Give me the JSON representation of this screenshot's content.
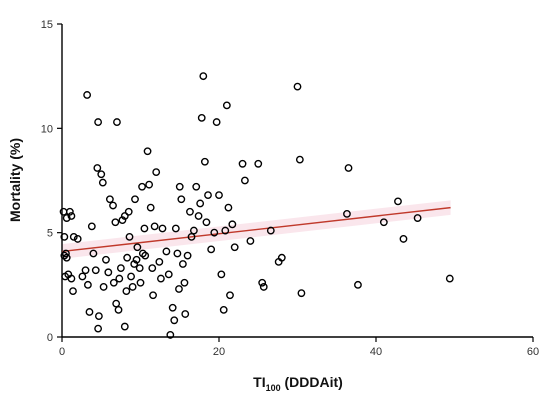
{
  "chart_data": {
    "type": "scatter",
    "title": "",
    "xlabel": "TI",
    "xlabel_subscript": "100",
    "xlabel_suffix": " (DDDAit)",
    "ylabel": "Mortality (%)",
    "xlim": [
      0,
      60
    ],
    "ylim": [
      0,
      15
    ],
    "xticks": [
      "0",
      "20",
      "40",
      "60"
    ],
    "yticks": [
      "0",
      "5",
      "10",
      "15"
    ],
    "grid": false,
    "legend": "none",
    "colors": {
      "points": "#000000",
      "trend_line": "#c0392b",
      "confidence_band": "#f6d2dc"
    },
    "trend_line": {
      "x": [
        0,
        49.5
      ],
      "y": [
        4.1,
        6.2
      ]
    },
    "points": [
      {
        "x": 0.2,
        "y": 6.0
      },
      {
        "x": 0.6,
        "y": 5.7
      },
      {
        "x": 1.0,
        "y": 6.0
      },
      {
        "x": 1.2,
        "y": 5.8
      },
      {
        "x": 0.3,
        "y": 4.8
      },
      {
        "x": 0.5,
        "y": 4.0
      },
      {
        "x": 0.3,
        "y": 3.9
      },
      {
        "x": 0.6,
        "y": 3.8
      },
      {
        "x": 0.4,
        "y": 2.9
      },
      {
        "x": 0.8,
        "y": 3.0
      },
      {
        "x": 1.2,
        "y": 2.8
      },
      {
        "x": 1.5,
        "y": 4.8
      },
      {
        "x": 2.0,
        "y": 4.7
      },
      {
        "x": 2.6,
        "y": 2.9
      },
      {
        "x": 3.0,
        "y": 3.2
      },
      {
        "x": 3.3,
        "y": 2.5
      },
      {
        "x": 1.4,
        "y": 2.2
      },
      {
        "x": 3.2,
        "y": 11.6
      },
      {
        "x": 3.8,
        "y": 5.3
      },
      {
        "x": 4.0,
        "y": 4.0
      },
      {
        "x": 4.3,
        "y": 3.2
      },
      {
        "x": 4.5,
        "y": 8.1
      },
      {
        "x": 4.6,
        "y": 10.3
      },
      {
        "x": 5.0,
        "y": 7.8
      },
      {
        "x": 5.2,
        "y": 7.4
      },
      {
        "x": 4.7,
        "y": 1.0
      },
      {
        "x": 4.6,
        "y": 0.4
      },
      {
        "x": 3.5,
        "y": 1.2
      },
      {
        "x": 5.3,
        "y": 2.4
      },
      {
        "x": 5.6,
        "y": 3.7
      },
      {
        "x": 5.9,
        "y": 3.1
      },
      {
        "x": 6.1,
        "y": 6.6
      },
      {
        "x": 6.5,
        "y": 6.3
      },
      {
        "x": 6.8,
        "y": 5.5
      },
      {
        "x": 7.0,
        "y": 10.3
      },
      {
        "x": 6.6,
        "y": 2.6
      },
      {
        "x": 6.9,
        "y": 1.6
      },
      {
        "x": 7.2,
        "y": 1.3
      },
      {
        "x": 7.3,
        "y": 2.8
      },
      {
        "x": 7.5,
        "y": 3.3
      },
      {
        "x": 7.7,
        "y": 5.6
      },
      {
        "x": 8.0,
        "y": 5.8
      },
      {
        "x": 8.0,
        "y": 0.5
      },
      {
        "x": 8.2,
        "y": 2.2
      },
      {
        "x": 8.3,
        "y": 3.8
      },
      {
        "x": 8.5,
        "y": 6.0
      },
      {
        "x": 8.6,
        "y": 4.8
      },
      {
        "x": 8.8,
        "y": 2.9
      },
      {
        "x": 9.0,
        "y": 2.4
      },
      {
        "x": 9.2,
        "y": 3.5
      },
      {
        "x": 9.3,
        "y": 6.6
      },
      {
        "x": 9.5,
        "y": 3.7
      },
      {
        "x": 9.6,
        "y": 4.3
      },
      {
        "x": 9.9,
        "y": 3.3
      },
      {
        "x": 10.0,
        "y": 2.6
      },
      {
        "x": 10.2,
        "y": 7.2
      },
      {
        "x": 10.3,
        "y": 4.0
      },
      {
        "x": 10.5,
        "y": 5.2
      },
      {
        "x": 10.6,
        "y": 3.9
      },
      {
        "x": 10.9,
        "y": 8.9
      },
      {
        "x": 11.1,
        "y": 7.3
      },
      {
        "x": 11.3,
        "y": 6.2
      },
      {
        "x": 11.5,
        "y": 3.3
      },
      {
        "x": 11.6,
        "y": 2.0
      },
      {
        "x": 11.8,
        "y": 5.3
      },
      {
        "x": 12.0,
        "y": 7.9
      },
      {
        "x": 12.4,
        "y": 3.6
      },
      {
        "x": 12.6,
        "y": 2.8
      },
      {
        "x": 12.8,
        "y": 5.2
      },
      {
        "x": 13.3,
        "y": 4.1
      },
      {
        "x": 13.6,
        "y": 3.0
      },
      {
        "x": 13.8,
        "y": 0.1
      },
      {
        "x": 14.1,
        "y": 1.4
      },
      {
        "x": 14.3,
        "y": 0.8
      },
      {
        "x": 14.5,
        "y": 5.2
      },
      {
        "x": 14.7,
        "y": 4.0
      },
      {
        "x": 14.9,
        "y": 2.3
      },
      {
        "x": 15.0,
        "y": 7.2
      },
      {
        "x": 15.2,
        "y": 6.6
      },
      {
        "x": 15.4,
        "y": 3.5
      },
      {
        "x": 15.6,
        "y": 2.6
      },
      {
        "x": 15.7,
        "y": 1.1
      },
      {
        "x": 16.0,
        "y": 3.9
      },
      {
        "x": 16.3,
        "y": 6.0
      },
      {
        "x": 16.5,
        "y": 4.8
      },
      {
        "x": 16.8,
        "y": 5.1
      },
      {
        "x": 17.1,
        "y": 7.2
      },
      {
        "x": 17.4,
        "y": 5.8
      },
      {
        "x": 17.6,
        "y": 6.4
      },
      {
        "x": 17.8,
        "y": 10.5
      },
      {
        "x": 18.0,
        "y": 12.5
      },
      {
        "x": 18.2,
        "y": 8.4
      },
      {
        "x": 18.4,
        "y": 5.5
      },
      {
        "x": 18.6,
        "y": 6.8
      },
      {
        "x": 19.0,
        "y": 4.2
      },
      {
        "x": 19.4,
        "y": 5.0
      },
      {
        "x": 19.7,
        "y": 10.3
      },
      {
        "x": 20.0,
        "y": 6.8
      },
      {
        "x": 20.3,
        "y": 3.0
      },
      {
        "x": 20.6,
        "y": 1.3
      },
      {
        "x": 20.8,
        "y": 5.1
      },
      {
        "x": 21.0,
        "y": 11.1
      },
      {
        "x": 21.2,
        "y": 6.2
      },
      {
        "x": 21.4,
        "y": 2.0
      },
      {
        "x": 21.7,
        "y": 5.4
      },
      {
        "x": 22.0,
        "y": 4.3
      },
      {
        "x": 23.0,
        "y": 8.3
      },
      {
        "x": 23.3,
        "y": 7.5
      },
      {
        "x": 24.0,
        "y": 4.6
      },
      {
        "x": 25.0,
        "y": 8.3
      },
      {
        "x": 25.5,
        "y": 2.6
      },
      {
        "x": 25.7,
        "y": 2.4
      },
      {
        "x": 26.6,
        "y": 5.1
      },
      {
        "x": 27.6,
        "y": 3.6
      },
      {
        "x": 28.0,
        "y": 3.8
      },
      {
        "x": 30.0,
        "y": 12.0
      },
      {
        "x": 30.3,
        "y": 8.5
      },
      {
        "x": 30.5,
        "y": 2.1
      },
      {
        "x": 36.3,
        "y": 5.9
      },
      {
        "x": 36.5,
        "y": 8.1
      },
      {
        "x": 37.7,
        "y": 2.5
      },
      {
        "x": 41.0,
        "y": 5.5
      },
      {
        "x": 42.8,
        "y": 6.5
      },
      {
        "x": 43.5,
        "y": 4.7
      },
      {
        "x": 45.3,
        "y": 5.7
      },
      {
        "x": 49.4,
        "y": 2.8
      }
    ]
  }
}
